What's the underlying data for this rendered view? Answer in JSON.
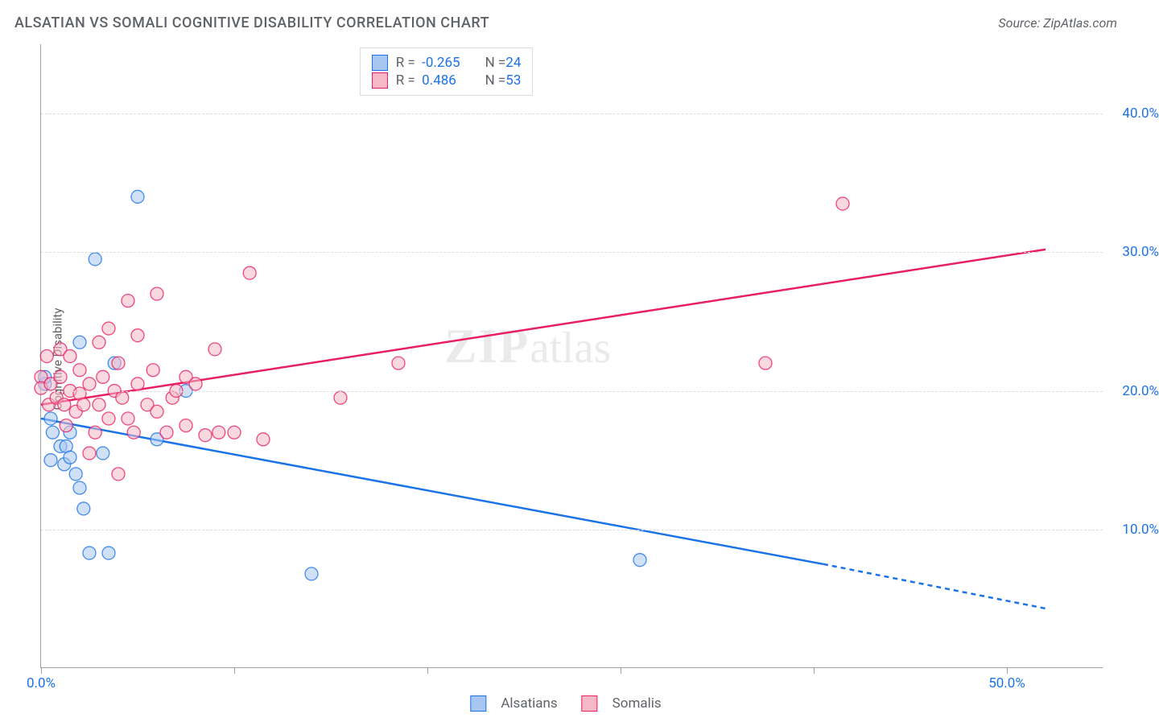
{
  "title": "ALSATIAN VS SOMALI COGNITIVE DISABILITY CORRELATION CHART",
  "source_label": "Source: ZipAtlas.com",
  "y_axis_label": "Cognitive Disability",
  "watermark": {
    "part1": "ZIP",
    "part2": "atlas"
  },
  "chart": {
    "type": "scatter-with-regression",
    "background_color": "#ffffff",
    "grid_color": "#dadce0",
    "axis_color": "#9aa0a6",
    "label_text_color": "#5f6368",
    "value_text_color": "#1a73e8",
    "xlim": [
      0,
      55
    ],
    "ylim": [
      0,
      45
    ],
    "x_ticks": [
      0,
      10,
      20,
      30,
      40,
      50
    ],
    "x_tick_labels": {
      "0": "0.0%",
      "50": "50.0%"
    },
    "y_ticks": [
      10,
      20,
      30,
      40
    ],
    "y_tick_labels": {
      "10": "10.0%",
      "20": "20.0%",
      "30": "30.0%",
      "40": "40.0%"
    },
    "marker_radius": 8,
    "marker_opacity": 0.55,
    "line_width": 2.5
  },
  "series": [
    {
      "name": "Alsatians",
      "fill_color": "#a8c7f0",
      "stroke_color": "#1a73e8",
      "line_color": "#1a73e8",
      "r_value": "-0.265",
      "n_value": "24",
      "points": [
        [
          0.2,
          20.5
        ],
        [
          0.2,
          21.0
        ],
        [
          0.5,
          18.0
        ],
        [
          0.5,
          15.0
        ],
        [
          0.6,
          17.0
        ],
        [
          1.0,
          16.0
        ],
        [
          1.2,
          14.7
        ],
        [
          1.3,
          16.0
        ],
        [
          1.5,
          15.2
        ],
        [
          1.5,
          17.0
        ],
        [
          1.8,
          14.0
        ],
        [
          2.0,
          13.0
        ],
        [
          2.0,
          23.5
        ],
        [
          2.2,
          11.5
        ],
        [
          2.5,
          8.3
        ],
        [
          2.8,
          29.5
        ],
        [
          3.2,
          15.5
        ],
        [
          3.5,
          8.3
        ],
        [
          3.8,
          22.0
        ],
        [
          5.0,
          34.0
        ],
        [
          6.0,
          16.5
        ],
        [
          7.5,
          20.0
        ],
        [
          14.0,
          6.8
        ],
        [
          31.0,
          7.8
        ]
      ],
      "regression": {
        "x1": 0,
        "y1": 18.0,
        "x2_solid": 40.5,
        "y2_solid": 7.5,
        "x2_dash": 52,
        "y2_dash": 4.3
      }
    },
    {
      "name": "Somalis",
      "fill_color": "#f6b8c6",
      "stroke_color": "#e91e63",
      "line_color": "#e91e63",
      "r_value": "0.486",
      "n_value": "53",
      "points": [
        [
          0.0,
          21.0
        ],
        [
          0.0,
          20.2
        ],
        [
          0.3,
          22.5
        ],
        [
          0.4,
          19.0
        ],
        [
          0.5,
          20.5
        ],
        [
          0.8,
          19.5
        ],
        [
          1.0,
          21.0
        ],
        [
          1.0,
          23.0
        ],
        [
          1.2,
          19.0
        ],
        [
          1.3,
          17.5
        ],
        [
          1.5,
          20.0
        ],
        [
          1.5,
          22.5
        ],
        [
          1.8,
          18.5
        ],
        [
          2.0,
          19.8
        ],
        [
          2.0,
          21.5
        ],
        [
          2.2,
          19.0
        ],
        [
          2.5,
          20.5
        ],
        [
          2.5,
          15.5
        ],
        [
          2.8,
          17.0
        ],
        [
          3.0,
          23.5
        ],
        [
          3.0,
          19.0
        ],
        [
          3.2,
          21.0
        ],
        [
          3.5,
          18.0
        ],
        [
          3.5,
          24.5
        ],
        [
          3.8,
          20.0
        ],
        [
          4.0,
          14.0
        ],
        [
          4.0,
          22.0
        ],
        [
          4.2,
          19.5
        ],
        [
          4.5,
          18.0
        ],
        [
          4.5,
          26.5
        ],
        [
          4.8,
          17.0
        ],
        [
          5.0,
          20.5
        ],
        [
          5.0,
          24.0
        ],
        [
          5.5,
          19.0
        ],
        [
          5.8,
          21.5
        ],
        [
          6.0,
          27.0
        ],
        [
          6.0,
          18.5
        ],
        [
          6.5,
          17.0
        ],
        [
          6.8,
          19.5
        ],
        [
          7.0,
          20.0
        ],
        [
          7.5,
          21.0
        ],
        [
          7.5,
          17.5
        ],
        [
          8.0,
          20.5
        ],
        [
          8.5,
          16.8
        ],
        [
          9.0,
          23.0
        ],
        [
          9.2,
          17.0
        ],
        [
          10.0,
          17.0
        ],
        [
          10.8,
          28.5
        ],
        [
          11.5,
          16.5
        ],
        [
          15.5,
          19.5
        ],
        [
          18.5,
          22.0
        ],
        [
          37.5,
          22.0
        ],
        [
          41.5,
          33.5
        ]
      ],
      "regression": {
        "x1": 0,
        "y1": 19.0,
        "x2_solid": 52,
        "y2_solid": 30.2,
        "x2_dash": 52,
        "y2_dash": 30.2
      }
    }
  ],
  "bottom_legend": [
    {
      "label": "Alsatians",
      "fill": "#a8c7f0",
      "stroke": "#1a73e8"
    },
    {
      "label": "Somalis",
      "fill": "#f6b8c6",
      "stroke": "#e91e63"
    }
  ]
}
